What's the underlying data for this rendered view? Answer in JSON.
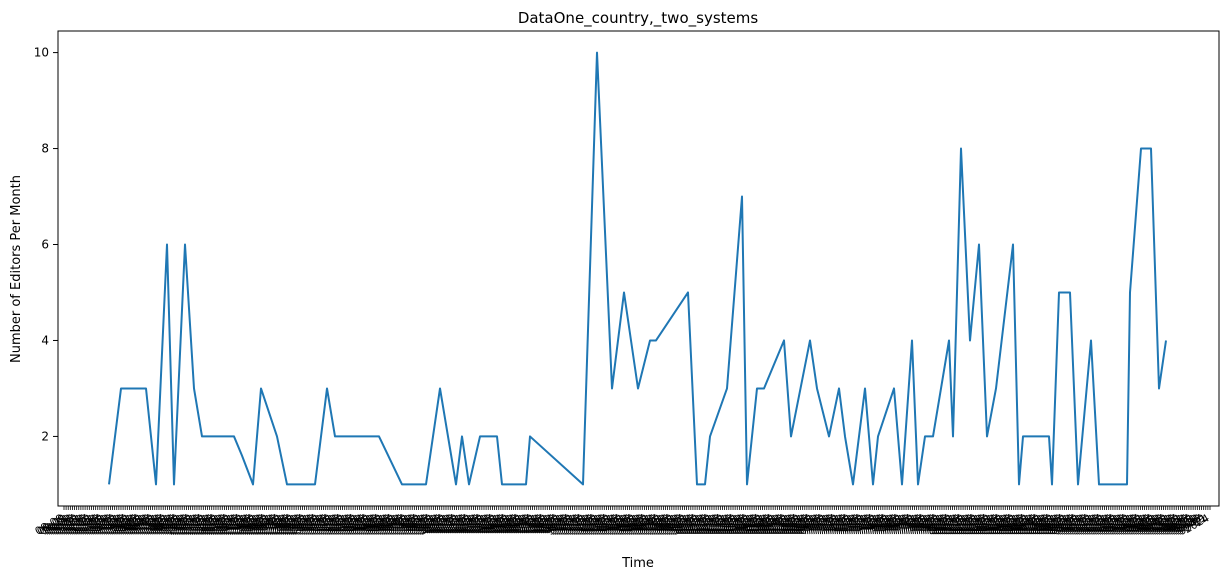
{
  "chart_data": {
    "type": "line",
    "title": "DataOne_country,_two_systems",
    "xlabel": "Time",
    "ylabel": "Number of Editors Per Month",
    "ylim": [
      0.55,
      10.45
    ],
    "yticks": [
      2,
      4,
      6,
      8,
      10
    ],
    "grid": false,
    "legend": "none",
    "line_color": "#1f77b4",
    "xtick_labels": [
      "08-08",
      "09-09",
      "09-11",
      "10-01",
      "10-03",
      "10-05",
      "10-07",
      "10-09",
      "10-11",
      "11-01",
      "11-03",
      "11-05",
      "11-07",
      "11-09",
      "11-11",
      "12-01",
      "12-03",
      "12-05",
      "12-07",
      "12-09",
      "12-11",
      "13-01",
      "13-03",
      "13-05",
      "13-07",
      "13-09",
      "13-11",
      "14-01",
      "14-03",
      "14-05",
      "14-07",
      "14-09",
      "14-11",
      "15-01",
      "15-03",
      "15-05",
      "15-07",
      "15-09",
      "15-11",
      "16-01",
      "16-03",
      "16-05",
      "16-07",
      "16-09",
      "16-11",
      "17-01",
      "17-03",
      "17-05",
      "17-07",
      "17-09",
      "17-11",
      "18-01",
      "18-03",
      "18-05",
      "18-07",
      "18-09",
      "18-11",
      "19-01",
      "19-03",
      "19-05",
      "19-07",
      "19-09",
      "19-11",
      "20-01",
      "20-03",
      "20-05",
      "20-07",
      "20-09",
      "20-11",
      "21-01",
      "21-03",
      "21-05",
      "21-07",
      "21-09",
      "21-11",
      "22-01",
      "22-03",
      "22-05",
      "22-07",
      "22-09",
      "22-11",
      "23-01",
      "23-03",
      "23-05",
      "23-07",
      "23-09",
      "23-11",
      "24-01",
      "24-03",
      "24-05",
      "24-07",
      "24-09",
      "24-11",
      "25-01",
      "25-03",
      "25-05",
      "25-07",
      "25-09",
      "25-11",
      "26-01",
      "26-03",
      "26-05",
      "26-07",
      "26-09",
      "26-11",
      "27-01",
      "27-03",
      "27-05",
      "27-07",
      "27-09",
      "27-11",
      "28-01",
      "28-03",
      "28-05",
      "28-07",
      "28-09",
      "28-11",
      "29-01",
      "29-03",
      "29-05",
      "29-07",
      "29-09",
      "29-11",
      "30-01",
      "30-03",
      "30-05",
      "30-07",
      "30-09",
      "30-11",
      "31-01",
      "31-03",
      "31-05",
      "31-07",
      "31-09",
      "31-11",
      "32-01",
      "32-03",
      "32-05",
      "32-07",
      "32-09",
      "32-11",
      "33-01",
      "33-03",
      "33-05",
      "33-07",
      "33-09",
      "33-11",
      "34-01",
      "34-03",
      "34-05",
      "34-07",
      "34-09",
      "34-11",
      "35-01",
      "35-03",
      "35-05",
      "35-07",
      "35-09",
      "35-11",
      "36-01",
      "36-03",
      "36-05",
      "36-07",
      "36-09",
      "36-11",
      "37-01",
      "37-03",
      "37-05",
      "37-07",
      "37-09",
      "37-11",
      "38-01",
      "38-03",
      "38-05",
      "38-07",
      "38-09",
      "38-11",
      "39-01",
      "39-03",
      "39-05",
      "39-07",
      "39-09",
      "39-11",
      "40-01",
      "40-03",
      "40-05",
      "40-07",
      "40-09",
      "40-11",
      "41-01",
      "41-03",
      "41-05",
      "41-07",
      "41-09",
      "41-11",
      "42-01",
      "42-03",
      "42-05",
      "42-07",
      "42-09",
      "42-11",
      "43-01",
      "43-03",
      "43-05",
      "43-07",
      "43-09",
      "43-11",
      "44-01",
      "44-03",
      "44-05",
      "44-07",
      "44-09",
      "44-11",
      "45-01",
      "45-03",
      "45-05",
      "45-07",
      "45-09",
      "45-11",
      "46-01",
      "46-03",
      "46-05",
      "46-07",
      "46-09",
      "46-11",
      "47-01",
      "47-03",
      "47-05",
      "47-07",
      "47-09",
      "47-11",
      "48-01",
      "48-03",
      "48-05",
      "48-07",
      "48-09",
      "48-11",
      "49-01",
      "49-03",
      "49-05",
      "49-07",
      "49-09",
      "49-11",
      "50-01",
      "50-03",
      "50-05",
      "50-07",
      "50-09",
      "50-11",
      "51-01",
      "51-03",
      "51-05",
      "51-07",
      "51-09",
      "51-11",
      "52-01",
      "52-03",
      "52-05",
      "52-07",
      "52-09",
      "52-11",
      "53-01",
      "53-03",
      "53-05",
      "53-07",
      "53-09",
      "53-11",
      "54-01",
      "54-03",
      "54-05",
      "54-07",
      "54-09",
      "54-11",
      "55-01",
      "55-03",
      "55-05",
      "55-07",
      "55-09",
      "55-11",
      "56-01",
      "56-03",
      "56-05",
      "56-07",
      "56-09",
      "56-11",
      "57-01",
      "57-03",
      "57-05",
      "57-07",
      "57-09",
      "57-11",
      "58-01",
      "58-03",
      "58-05",
      "58-07",
      "58-09",
      "58-11",
      "59-01",
      "59-03",
      "59-05",
      "59-07",
      "59-09",
      "59-11",
      "60-01",
      "60-03",
      "60-05",
      "60-07",
      "60-09",
      "60-11",
      "61-01",
      "61-03",
      "61-05",
      "61-07",
      "61-09",
      "61-11",
      "62-01",
      "62-03",
      "62-05",
      "62-07",
      "62-09",
      "62-11",
      "63-01",
      "63-03",
      "63-05",
      "63-07",
      "63-09",
      "63-11",
      "64-01",
      "64-03",
      "64-05",
      "64-07",
      "64-09",
      "64-11",
      "65-01",
      "65-03",
      "65-05",
      "65-07",
      "65-09",
      "65-11",
      "66-01",
      "66-03",
      "66-05",
      "66-07",
      "66-09",
      "66-11",
      "67-01",
      "67-03",
      "67-05",
      "67-07",
      "67-09",
      "67-11",
      "68-01",
      "68-03",
      "68-05",
      "68-07",
      "68-09",
      "68-11",
      "69-01",
      "69-03",
      "69-05",
      "69-07",
      "69-09",
      "69-11",
      "70-01",
      "70-03",
      "70-05",
      "70-07",
      "70-09",
      "70-11",
      "71-01",
      "71-03",
      "71-05",
      "71-07",
      "71-09",
      "71-11",
      "72-01",
      "72-03",
      "72-05",
      "72-07",
      "72-09",
      "72-11",
      "73-01",
      "73-03",
      "73-05",
      "73-07",
      "73-09",
      "73-11",
      "74-01",
      "74-03",
      "74-05",
      "74-07",
      "74-09",
      "74-11",
      "75-01",
      "75-03",
      "75-05",
      "75-07",
      "75-09",
      "75-11",
      "76-01",
      "76-03",
      "76-05",
      "76-07",
      "76-09",
      "76-11",
      "77-01",
      "77-03",
      "77-05",
      "77-07",
      "77-09",
      "77-11",
      "78-01",
      "78-03",
      "78-05",
      "78-07",
      "78-09",
      "78-11",
      "79-01",
      "79-03",
      "79-05",
      "79-07",
      "79-09",
      "79-11",
      "80-01",
      "80-03",
      "80-05",
      "80-07",
      "80-09",
      "80-11",
      "81-01",
      "81-03",
      "81-05",
      "81-07",
      "81-09",
      "81-11",
      "82-01",
      "82-03",
      "82-05",
      "82-07",
      "82-09",
      "82-11",
      "83-01",
      "83-03",
      "83-05",
      "83-07",
      "83-09",
      "83-11",
      "84-01",
      "84-03",
      "84-05",
      "84-07",
      "84-09",
      "84-11",
      "85-01",
      "85-03",
      "85-05",
      "85-07",
      "85-09",
      "85-11",
      "86-01",
      "86-03",
      "86-05",
      "86-07",
      "86-09",
      "86-11",
      "87-01",
      "87-03",
      "87-05",
      "87-07",
      "87-09",
      "87-11",
      "88-01",
      "88-03",
      "88-05",
      "88-07",
      "88-09",
      "88-11",
      "89-01",
      "89-03",
      "89-05",
      "89-07",
      "89-09",
      "89-11",
      "90-01",
      "90-03",
      "90-05",
      "90-07",
      "90-09",
      "90-11",
      "91-01",
      "91-03",
      "91-05",
      "91-07",
      "91-09",
      "91-11",
      "92-01",
      "92-03",
      "92-05",
      "92-07",
      "92-09",
      "92-11",
      "93-01",
      "93-03",
      "93-05",
      "93-07",
      "93-09",
      "93-11",
      "94-01",
      "94-03",
      "94-05",
      "94-07",
      "94-09",
      "94-11",
      "95-01",
      "95-03",
      "95-05",
      "95-07",
      "95-09",
      "95-11",
      "96-01",
      "96-03",
      "96-05",
      "96-07",
      "96-09",
      "96-11",
      "97-01",
      "97-03",
      "97-05",
      "97-07",
      "97-09",
      "97-11",
      "98-01",
      "98-03",
      "98-05",
      "98-07",
      "98-09",
      "98-11",
      "99-01",
      "99-03",
      "99-05",
      "99-07",
      "99-09",
      "99-11",
      "2024"
    ],
    "series": [
      {
        "x": [
          0.0,
          1.0,
          1.7,
          2.0,
          3.0,
          3.5,
          3.6,
          3.8,
          4.0,
          4.5,
          5.0,
          5.5,
          6.0,
          6.5,
          7.0,
          7.5,
          8.0,
          8.5,
          9.0,
          9.5,
          10.0,
          10.5,
          11.0,
          11.5,
          12.0,
          12.5,
          13.0,
          13.5,
          14.0,
          14.5,
          15.0,
          15.5,
          16.0,
          16.5,
          17.0,
          17.5,
          18.0,
          18.5,
          19.0,
          19.5,
          20.0,
          20.5,
          21.0,
          21.5,
          22.0,
          22.5,
          23.0,
          23.5,
          24.0,
          24.5,
          25.0,
          25.5,
          26.0,
          26.5,
          27.0,
          27.5,
          28.0,
          28.5,
          29.0,
          29.5,
          30.0,
          30.5,
          31.0,
          31.5,
          32.0,
          32.5,
          33.0,
          33.5,
          34.0,
          34.5,
          35.0,
          35.5,
          36.0,
          36.5,
          37.0,
          37.5,
          38.0,
          38.5,
          39.0,
          39.5,
          40.0,
          40.5,
          41.0,
          41.5,
          42.0,
          42.5,
          43.0,
          43.5,
          44.0,
          44.5,
          45.0,
          45.5,
          46.0,
          46.5,
          47.0,
          47.5,
          48.0,
          48.5,
          49.0,
          49.5,
          50.0,
          50.5,
          51.0,
          51.5,
          52.0,
          52.5,
          53.0,
          53.5,
          54.0,
          54.5,
          55.0,
          55.5,
          56.0,
          56.5,
          57.0,
          57.5,
          58.0,
          58.5,
          59.0,
          59.5,
          60.0,
          60.5,
          61.0,
          61.5,
          62.0,
          62.5,
          63.0,
          63.5,
          64.0,
          64.5,
          65.0,
          65.5,
          66.0,
          66.5,
          67.0,
          67.5,
          68.0,
          68.5,
          69.0,
          69.5,
          70.0,
          70.5,
          71.0,
          71.5,
          72.0,
          72.5,
          73.0,
          73.5,
          74.0,
          74.5,
          75.0,
          75.5,
          76.0,
          76.5,
          77.0,
          77.5,
          78.0,
          78.5,
          79.0,
          79.5,
          80.0,
          80.5,
          81.0,
          81.5,
          82.0,
          82.5,
          83.0,
          83.5,
          84.0,
          84.5,
          85.0,
          85.5,
          86.0,
          86.5,
          87.0,
          87.5,
          88.0,
          88.5,
          89.0,
          89.5,
          90.0
        ],
        "y_points": [
          [
            109,
            1
          ],
          [
            121,
            3
          ],
          [
            146,
            3
          ],
          [
            156,
            1
          ],
          [
            167,
            6
          ],
          [
            174,
            1
          ],
          [
            185,
            6
          ],
          [
            194,
            3
          ],
          [
            202,
            2
          ],
          [
            234,
            2
          ],
          [
            242,
            1.6
          ],
          [
            253,
            1
          ],
          [
            261,
            3
          ],
          [
            277,
            2
          ],
          [
            287,
            1
          ],
          [
            315,
            1
          ],
          [
            327,
            3
          ],
          [
            335,
            2
          ],
          [
            379,
            2
          ],
          [
            402,
            1
          ],
          [
            426,
            1
          ],
          [
            440,
            3
          ],
          [
            448,
            2
          ],
          [
            456,
            1
          ],
          [
            462,
            2
          ],
          [
            469,
            1
          ],
          [
            480,
            2
          ],
          [
            497,
            2
          ],
          [
            502,
            1
          ],
          [
            526,
            1
          ],
          [
            530,
            2
          ],
          [
            583,
            1
          ],
          [
            597,
            10
          ],
          [
            612,
            3
          ],
          [
            624,
            5
          ],
          [
            638,
            3
          ],
          [
            650,
            4
          ],
          [
            656,
            4
          ],
          [
            688,
            5
          ],
          [
            697,
            1
          ],
          [
            705,
            1
          ],
          [
            710,
            2
          ],
          [
            727,
            3
          ],
          [
            742,
            7
          ],
          [
            747,
            1
          ],
          [
            757,
            3
          ],
          [
            764,
            3
          ],
          [
            784,
            4
          ],
          [
            791,
            2
          ],
          [
            810,
            4
          ],
          [
            817,
            3
          ],
          [
            829,
            2
          ],
          [
            839,
            3
          ],
          [
            845,
            2
          ],
          [
            853,
            1
          ],
          [
            865,
            3
          ],
          [
            873,
            1
          ],
          [
            878,
            2
          ],
          [
            894,
            3
          ],
          [
            902,
            1
          ],
          [
            912,
            4
          ],
          [
            918,
            1
          ],
          [
            925,
            2
          ],
          [
            933,
            2
          ],
          [
            949,
            4
          ],
          [
            953,
            2
          ],
          [
            961,
            8
          ],
          [
            970,
            4
          ],
          [
            979,
            6
          ],
          [
            987,
            2
          ],
          [
            996,
            3
          ],
          [
            1013,
            6
          ],
          [
            1019,
            1
          ],
          [
            1023,
            2
          ],
          [
            1049,
            2
          ],
          [
            1052,
            1
          ],
          [
            1059,
            5
          ],
          [
            1070,
            5
          ],
          [
            1078,
            1
          ],
          [
            1091,
            4
          ],
          [
            1099,
            1
          ],
          [
            1127,
            1
          ],
          [
            1130,
            5
          ],
          [
            1141,
            8
          ],
          [
            1151,
            8
          ],
          [
            1159,
            3
          ],
          [
            1166,
            4
          ]
        ]
      }
    ]
  }
}
